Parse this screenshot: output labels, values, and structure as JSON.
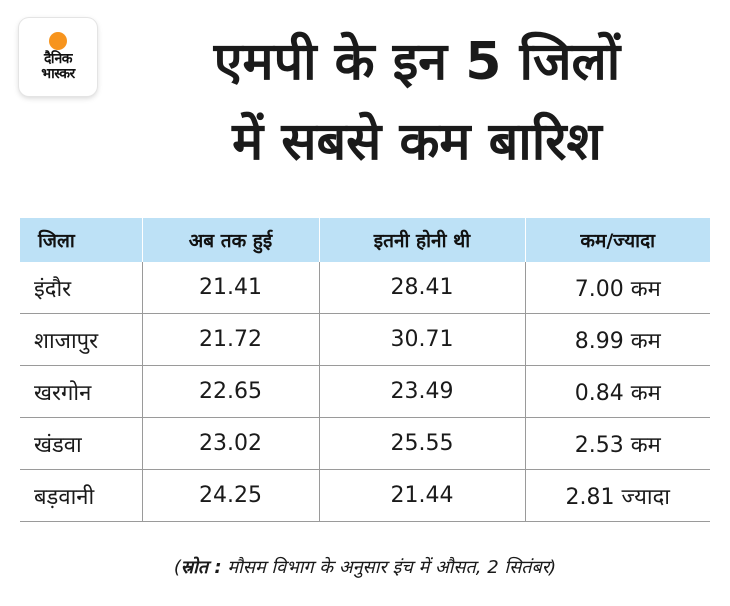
{
  "logo": {
    "line1": "दैनिक",
    "line2": "भास्कर"
  },
  "headline": {
    "line1": "एमपी के इन 5 जिलों",
    "line2": "में सबसे कम बारिश"
  },
  "table": {
    "headers": [
      "जिला",
      "अब तक हुई",
      "इतनी होनी थी",
      "कम/ज्यादा"
    ],
    "rows": [
      [
        "इंदौर",
        "21.41",
        "28.41",
        "7.00 कम"
      ],
      [
        "शाजापुर",
        "21.72",
        "30.71",
        "8.99 कम"
      ],
      [
        "खरगोन",
        "22.65",
        "23.49",
        "0.84 कम"
      ],
      [
        "खंडवा",
        "23.02",
        "25.55",
        "2.53 कम"
      ],
      [
        "बड़वानी",
        "24.25",
        "21.44",
        "2.81 ज्यादा"
      ]
    ]
  },
  "source": {
    "open_paren": "(",
    "label": "स्रोत :",
    "text": " मौसम विभाग के अनुसार इंच में औसत, 2 सितंबर)"
  },
  "colors": {
    "header_bg": "#bde1f6",
    "logo_sun": "#f7941d",
    "row_divider": "#9a9a9a"
  }
}
